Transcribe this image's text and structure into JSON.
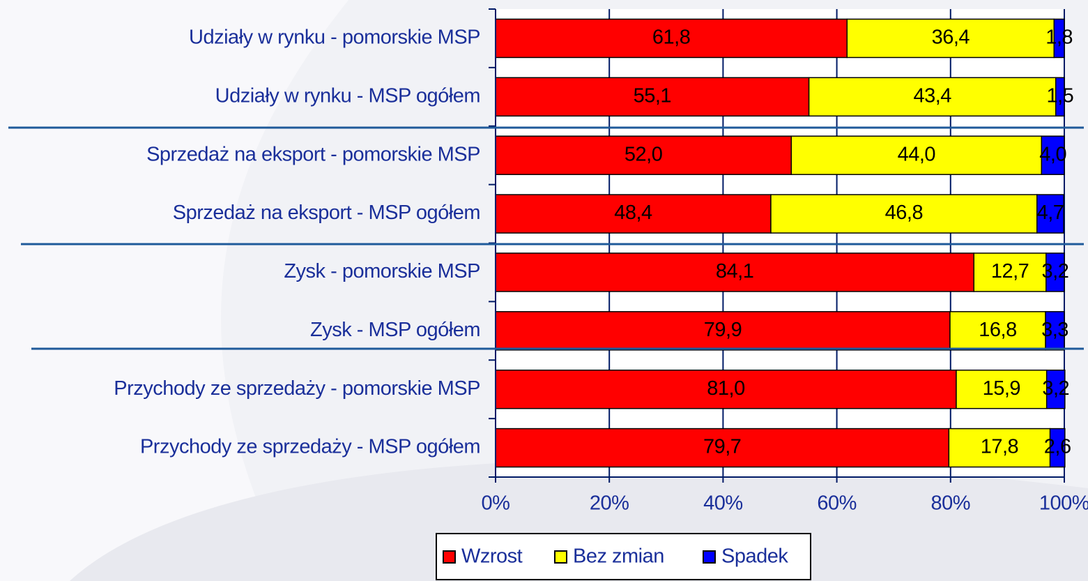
{
  "chart_data": {
    "type": "bar",
    "orientation": "horizontal",
    "stacked": true,
    "categories": [
      "Udziały w  rynku - pomorskie MSP",
      "Udziały w  rynku - MSP ogółem",
      "Sprzedaż na eksport - pomorskie MSP",
      "Sprzedaż na eksport - MSP ogółem",
      "Zysk - pomorskie MSP",
      "Zysk - MSP ogółem",
      "Przychody ze sprzedaży - pomorskie MSP",
      "Przychody ze sprzedaży - MSP ogółem"
    ],
    "series": [
      {
        "name": "Wzrost",
        "color": "#ff0000",
        "values": [
          61.8,
          55.1,
          52.0,
          48.4,
          84.1,
          79.9,
          81.0,
          79.7
        ],
        "value_labels": [
          "61,8",
          "55,1",
          "52,0",
          "48,4",
          "84,1",
          "79,9",
          "81,0",
          "79,7"
        ]
      },
      {
        "name": "Bez zmian",
        "color": "#ffff00",
        "values": [
          36.4,
          43.4,
          44.0,
          46.8,
          12.7,
          16.8,
          15.9,
          17.8
        ],
        "value_labels": [
          "36,4",
          "43,4",
          "44,0",
          "46,8",
          "12,7",
          "16,8",
          "15,9",
          "17,8"
        ]
      },
      {
        "name": "Spadek",
        "color": "#0000ff",
        "values": [
          1.8,
          1.5,
          4.0,
          4.7,
          3.2,
          3.3,
          3.2,
          2.6
        ],
        "value_labels": [
          "1,8",
          "1,5",
          "4,0",
          "4,7",
          "3,2",
          "3,3",
          "3,2",
          "2,6"
        ]
      }
    ],
    "xlim": [
      0,
      100
    ],
    "xticks": [
      {
        "value": 0,
        "label": "0%"
      },
      {
        "value": 20,
        "label": "20%"
      },
      {
        "value": 40,
        "label": "40%"
      },
      {
        "value": 60,
        "label": "60%"
      },
      {
        "value": 80,
        "label": "80%"
      },
      {
        "value": 100,
        "label": "100%"
      }
    ],
    "grid": true,
    "legend": "bottom"
  }
}
